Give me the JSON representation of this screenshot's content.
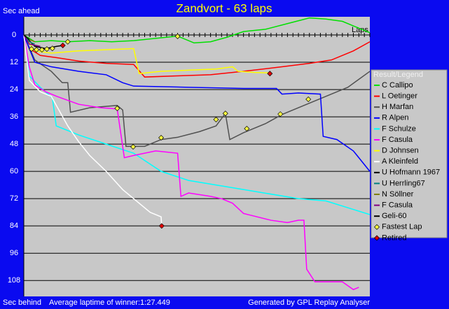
{
  "chart_data": {
    "type": "line",
    "title": "Zandvort - 63 laps",
    "y_label_top": "Sec ahead",
    "y_label_bottom": "Sec behind",
    "x_label": "Laps",
    "footer_left": "Average laptime of winner:1:27.449",
    "footer_right": "Generated by GPL Replay Analyser",
    "legend_title": "Result/Legend",
    "xlim": [
      0,
      63
    ],
    "ylim": [
      -8,
      115
    ],
    "yticks": [
      0,
      12,
      24,
      36,
      48,
      60,
      72,
      84,
      96,
      108
    ],
    "grid": true,
    "series": [
      {
        "name": "C Callipo",
        "color": "#00e000",
        "x": [
          0,
          2,
          5,
          8,
          12,
          16,
          20,
          24,
          28,
          31,
          34,
          37,
          40,
          44,
          48,
          52,
          55,
          58,
          61,
          63
        ],
        "values": [
          0,
          3,
          2.5,
          3,
          2.5,
          3,
          2.5,
          1.5,
          0.5,
          3.5,
          3,
          1,
          -1.5,
          -2.5,
          -5,
          -7.5,
          -7,
          -6,
          -3,
          -1
        ]
      },
      {
        "name": "L Oetinger",
        "color": "#ff0000",
        "x": [
          0,
          1,
          3,
          6,
          10,
          15,
          20,
          22,
          28,
          34,
          40,
          47,
          52,
          56,
          60,
          63
        ],
        "values": [
          0,
          6,
          9,
          10,
          11.5,
          12.5,
          13,
          18.5,
          18,
          17.5,
          16,
          14,
          12.5,
          11,
          7,
          3
        ]
      },
      {
        "name": "H Marfan",
        "color": "#505050",
        "x": [
          0,
          2,
          5,
          7,
          8,
          8.5,
          12,
          17,
          18,
          18.6,
          22,
          25,
          28,
          32,
          35,
          36.7,
          37.5,
          40,
          44,
          47,
          51,
          55,
          59,
          63
        ],
        "values": [
          0,
          11,
          16,
          21,
          21,
          34,
          32,
          31,
          33,
          49,
          49,
          46,
          45,
          42.5,
          40,
          34.5,
          46,
          43,
          39,
          35,
          31,
          27,
          23,
          16
        ]
      },
      {
        "name": "R Alpen",
        "color": "#0000ff",
        "x": [
          0,
          2,
          5,
          10,
          15,
          18,
          20,
          30,
          40,
          46,
          47,
          50,
          54,
          54.5,
          57,
          60,
          63
        ],
        "values": [
          0,
          12,
          14,
          16,
          17.5,
          21,
          22.5,
          23,
          23.5,
          23.5,
          26,
          25.5,
          26,
          44.6,
          46,
          51,
          60
        ]
      },
      {
        "name": "F Schulze",
        "color": "#00ffff",
        "x": [
          0,
          1,
          3,
          5.2,
          5.9,
          10,
          15,
          20,
          25,
          30,
          40,
          50,
          55,
          63
        ],
        "values": [
          0,
          18,
          23,
          27.7,
          40,
          44,
          48,
          52,
          60,
          64,
          68,
          72,
          73,
          79
        ]
      },
      {
        "name": "F Casula",
        "color": "#ff00ff",
        "x": [
          0,
          1,
          2,
          4,
          6,
          10,
          14,
          17,
          18.3,
          20,
          24,
          28,
          28.6,
          30,
          34,
          36,
          38,
          40,
          45,
          48,
          50,
          51,
          51.5,
          53,
          58,
          60,
          61
        ],
        "values": [
          0,
          14,
          22,
          25,
          27,
          30.5,
          32,
          32.5,
          54,
          53,
          51,
          52,
          71,
          69.5,
          71,
          72,
          74,
          78.5,
          81.5,
          82.5,
          81.5,
          81.5,
          103,
          108.6,
          108.6,
          112,
          111
        ]
      },
      {
        "name": "D Johnsen",
        "color": "#ffff00",
        "x": [
          0,
          2,
          5,
          10,
          15,
          20,
          21,
          25,
          30,
          35,
          38,
          39,
          42,
          45
        ],
        "values": [
          0,
          7,
          8,
          7,
          6.5,
          6,
          17,
          16,
          15.5,
          15,
          14,
          16,
          16.5,
          16.7
        ]
      },
      {
        "name": "A Kleinfeld",
        "color": "#ffffff",
        "x": [
          0,
          1,
          3,
          5,
          8,
          10,
          12,
          15,
          18,
          20,
          23,
          25,
          25.1
        ],
        "values": [
          0,
          20,
          25,
          27,
          40,
          47,
          53,
          60,
          68,
          72,
          78,
          80,
          84
        ]
      },
      {
        "name": "U Hofmann 1967",
        "color": "#000000",
        "x": [
          0,
          2,
          4,
          6,
          7.1
        ],
        "values": [
          0,
          5,
          6,
          5,
          4.6
        ]
      },
      {
        "name": "U Herrling67",
        "color": "#008080",
        "x": [
          0,
          1,
          2
        ],
        "values": [
          0,
          3,
          4
        ]
      },
      {
        "name": "N Söllner",
        "color": "#808000",
        "x": [
          0,
          1,
          2
        ],
        "values": [
          0,
          2,
          3
        ]
      },
      {
        "name": "F Casula",
        "color": "#800080",
        "x": [
          0,
          1,
          3
        ],
        "values": [
          0,
          4,
          5
        ]
      },
      {
        "name": "Geli-60",
        "color": "#000000",
        "x": [
          0,
          1
        ],
        "values": [
          0,
          2
        ]
      }
    ],
    "fastest_laps": {
      "name": "Fastest Lap",
      "color": "#ffff40",
      "x": [
        1.4,
        2.3,
        3.3,
        4.2,
        5.2,
        8,
        17,
        19.9,
        25,
        28,
        35,
        36.7,
        40.6,
        46.7,
        51.8
      ],
      "values": [
        6.2,
        6.5,
        6.5,
        6.2,
        5.9,
        3,
        32.3,
        49.2,
        45.2,
        0.6,
        37.2,
        34.5,
        41.2,
        34.8,
        28.3
      ]
    },
    "retired": {
      "name": "Retired",
      "color": "#e00000",
      "x": [
        7.1,
        25.1,
        44.8
      ],
      "values": [
        4.6,
        84,
        17
      ]
    }
  }
}
